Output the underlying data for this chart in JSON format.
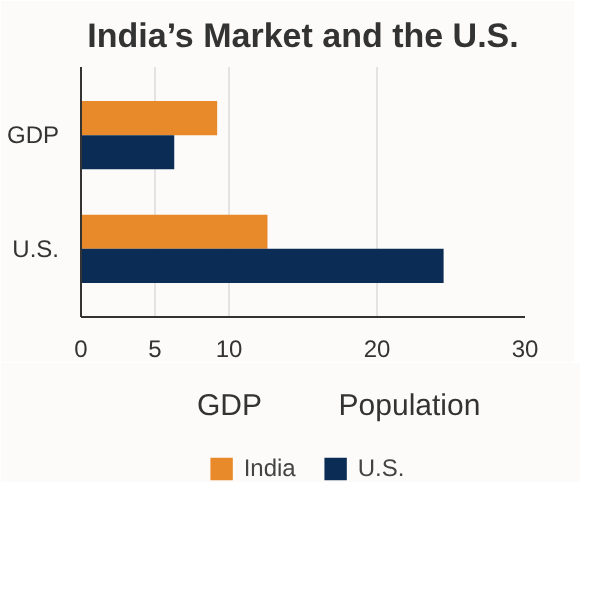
{
  "chart_data": {
    "type": "bar",
    "orientation": "horizontal",
    "title": "India’s Market and the U.S.",
    "categories": [
      "GDP",
      "U.S."
    ],
    "series": [
      {
        "name": "India",
        "color": "#e8892a",
        "values": [
          9.2,
          12.6
        ]
      },
      {
        "name": "U.S.",
        "color": "#0b2d55",
        "values": [
          6.3,
          24.5
        ]
      }
    ],
    "xlim": [
      0,
      30
    ],
    "xticks": [
      0,
      5,
      10,
      20,
      30
    ],
    "grid": "x",
    "legend": "bottom",
    "annotations": [
      "GDP",
      "Population"
    ]
  }
}
